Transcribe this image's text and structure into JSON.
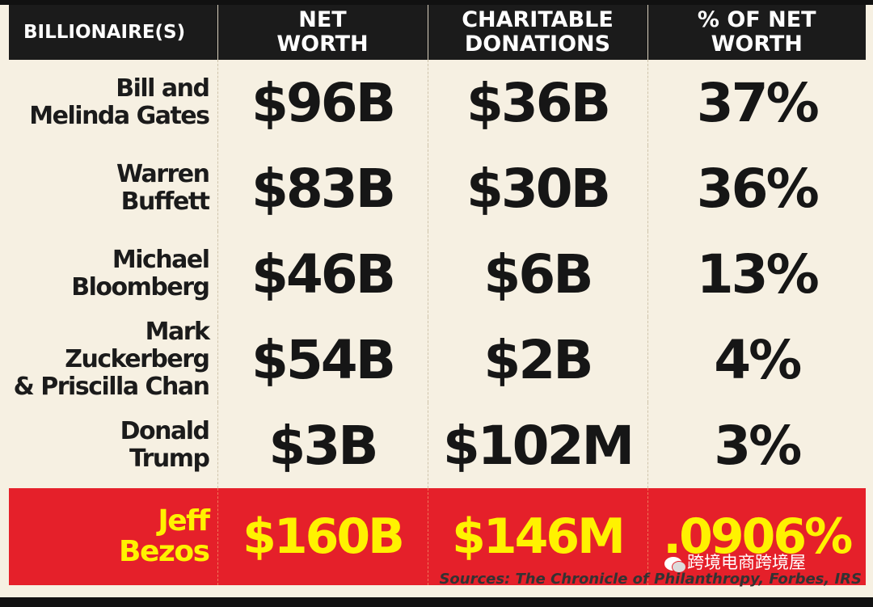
{
  "chart_data": {
    "type": "table",
    "columns": [
      "BILLIONAIRE(S)",
      "NET\nWORTH",
      "CHARITABLE\nDONATIONS",
      "% OF NET\nWORTH"
    ],
    "rows": [
      {
        "name": "Bill and\nMelinda Gates",
        "net_worth": "$96B",
        "donations": "$36B",
        "percent": "37%"
      },
      {
        "name": "Warren\nBuffett",
        "net_worth": "$83B",
        "donations": "$30B",
        "percent": "36%"
      },
      {
        "name": "Michael\nBloomberg",
        "net_worth": "$46B",
        "donations": "$6B",
        "percent": "13%"
      },
      {
        "name": "Mark Zuckerberg\n& Priscilla Chan",
        "net_worth": "$54B",
        "donations": "$2B",
        "percent": "4%"
      },
      {
        "name": "Donald\nTrump",
        "net_worth": "$3B",
        "donations": "$102M",
        "percent": "3%"
      },
      {
        "name": "Jeff\nBezos",
        "net_worth": "$160B",
        "donations": "$146M",
        "percent": ".0906%"
      }
    ],
    "highlight_row": 5,
    "colors": {
      "background": "#f6f0e2",
      "header": "#1b1b1b",
      "highlight": "#e5202a",
      "highlight_text": "#fff200"
    }
  },
  "watermark": "跨境电商跨境屋",
  "sources": "Sources: The Chronicle of Philanthropy, Forbes, IRS"
}
